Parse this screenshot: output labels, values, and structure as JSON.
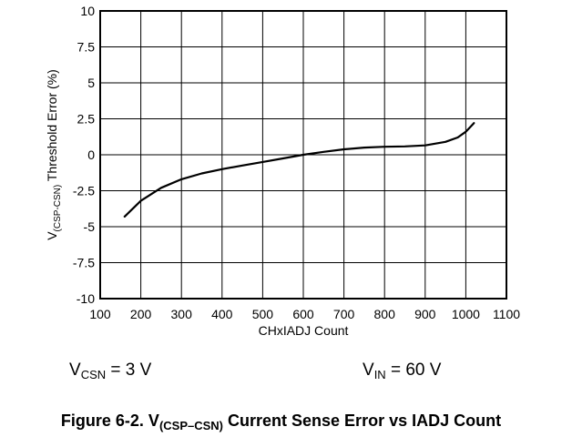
{
  "chart_data": {
    "type": "line",
    "xlabel": "CHxIADJ Count",
    "ylabel": {
      "prefix": "V",
      "subscript": "(CSP-CSN)",
      "suffix": " Threshold Error (%)"
    },
    "xlim": [
      100,
      1100
    ],
    "ylim": [
      -10,
      10
    ],
    "xticks": [
      100,
      200,
      300,
      400,
      500,
      600,
      700,
      800,
      900,
      1000,
      1100
    ],
    "yticks": [
      -10,
      -7.5,
      -5,
      -2.5,
      0,
      2.5,
      5,
      7.5,
      10
    ],
    "xtick_labels": [
      "100",
      "200",
      "300",
      "400",
      "500",
      "600",
      "700",
      "800",
      "900",
      "1000",
      "1100"
    ],
    "ytick_labels": [
      "-10",
      "-7.5",
      "-5",
      "-2.5",
      "0",
      "2.5",
      "5",
      "7.5",
      "10"
    ],
    "grid": true,
    "series": [
      {
        "x": [
          160,
          200,
          250,
          300,
          350,
          400,
          450,
          500,
          550,
          600,
          650,
          700,
          750,
          800,
          850,
          900,
          950,
          980,
          1000,
          1020
        ],
        "y": [
          -4.3,
          -3.2,
          -2.3,
          -1.7,
          -1.3,
          -1.0,
          -0.75,
          -0.5,
          -0.25,
          0.0,
          0.2,
          0.38,
          0.5,
          0.56,
          0.58,
          0.65,
          0.9,
          1.2,
          1.6,
          2.2
        ]
      }
    ]
  },
  "conditions": {
    "left": {
      "prefix": "V",
      "subscript": "CSN",
      "text": " = 3 V"
    },
    "right": {
      "prefix": "V",
      "subscript": "IN",
      "text": " = 60 V"
    }
  },
  "caption": {
    "prefix": "Figure 6-2. V",
    "subscript": "(CSP–CSN)",
    "suffix": " Current Sense Error vs IADJ Count"
  }
}
